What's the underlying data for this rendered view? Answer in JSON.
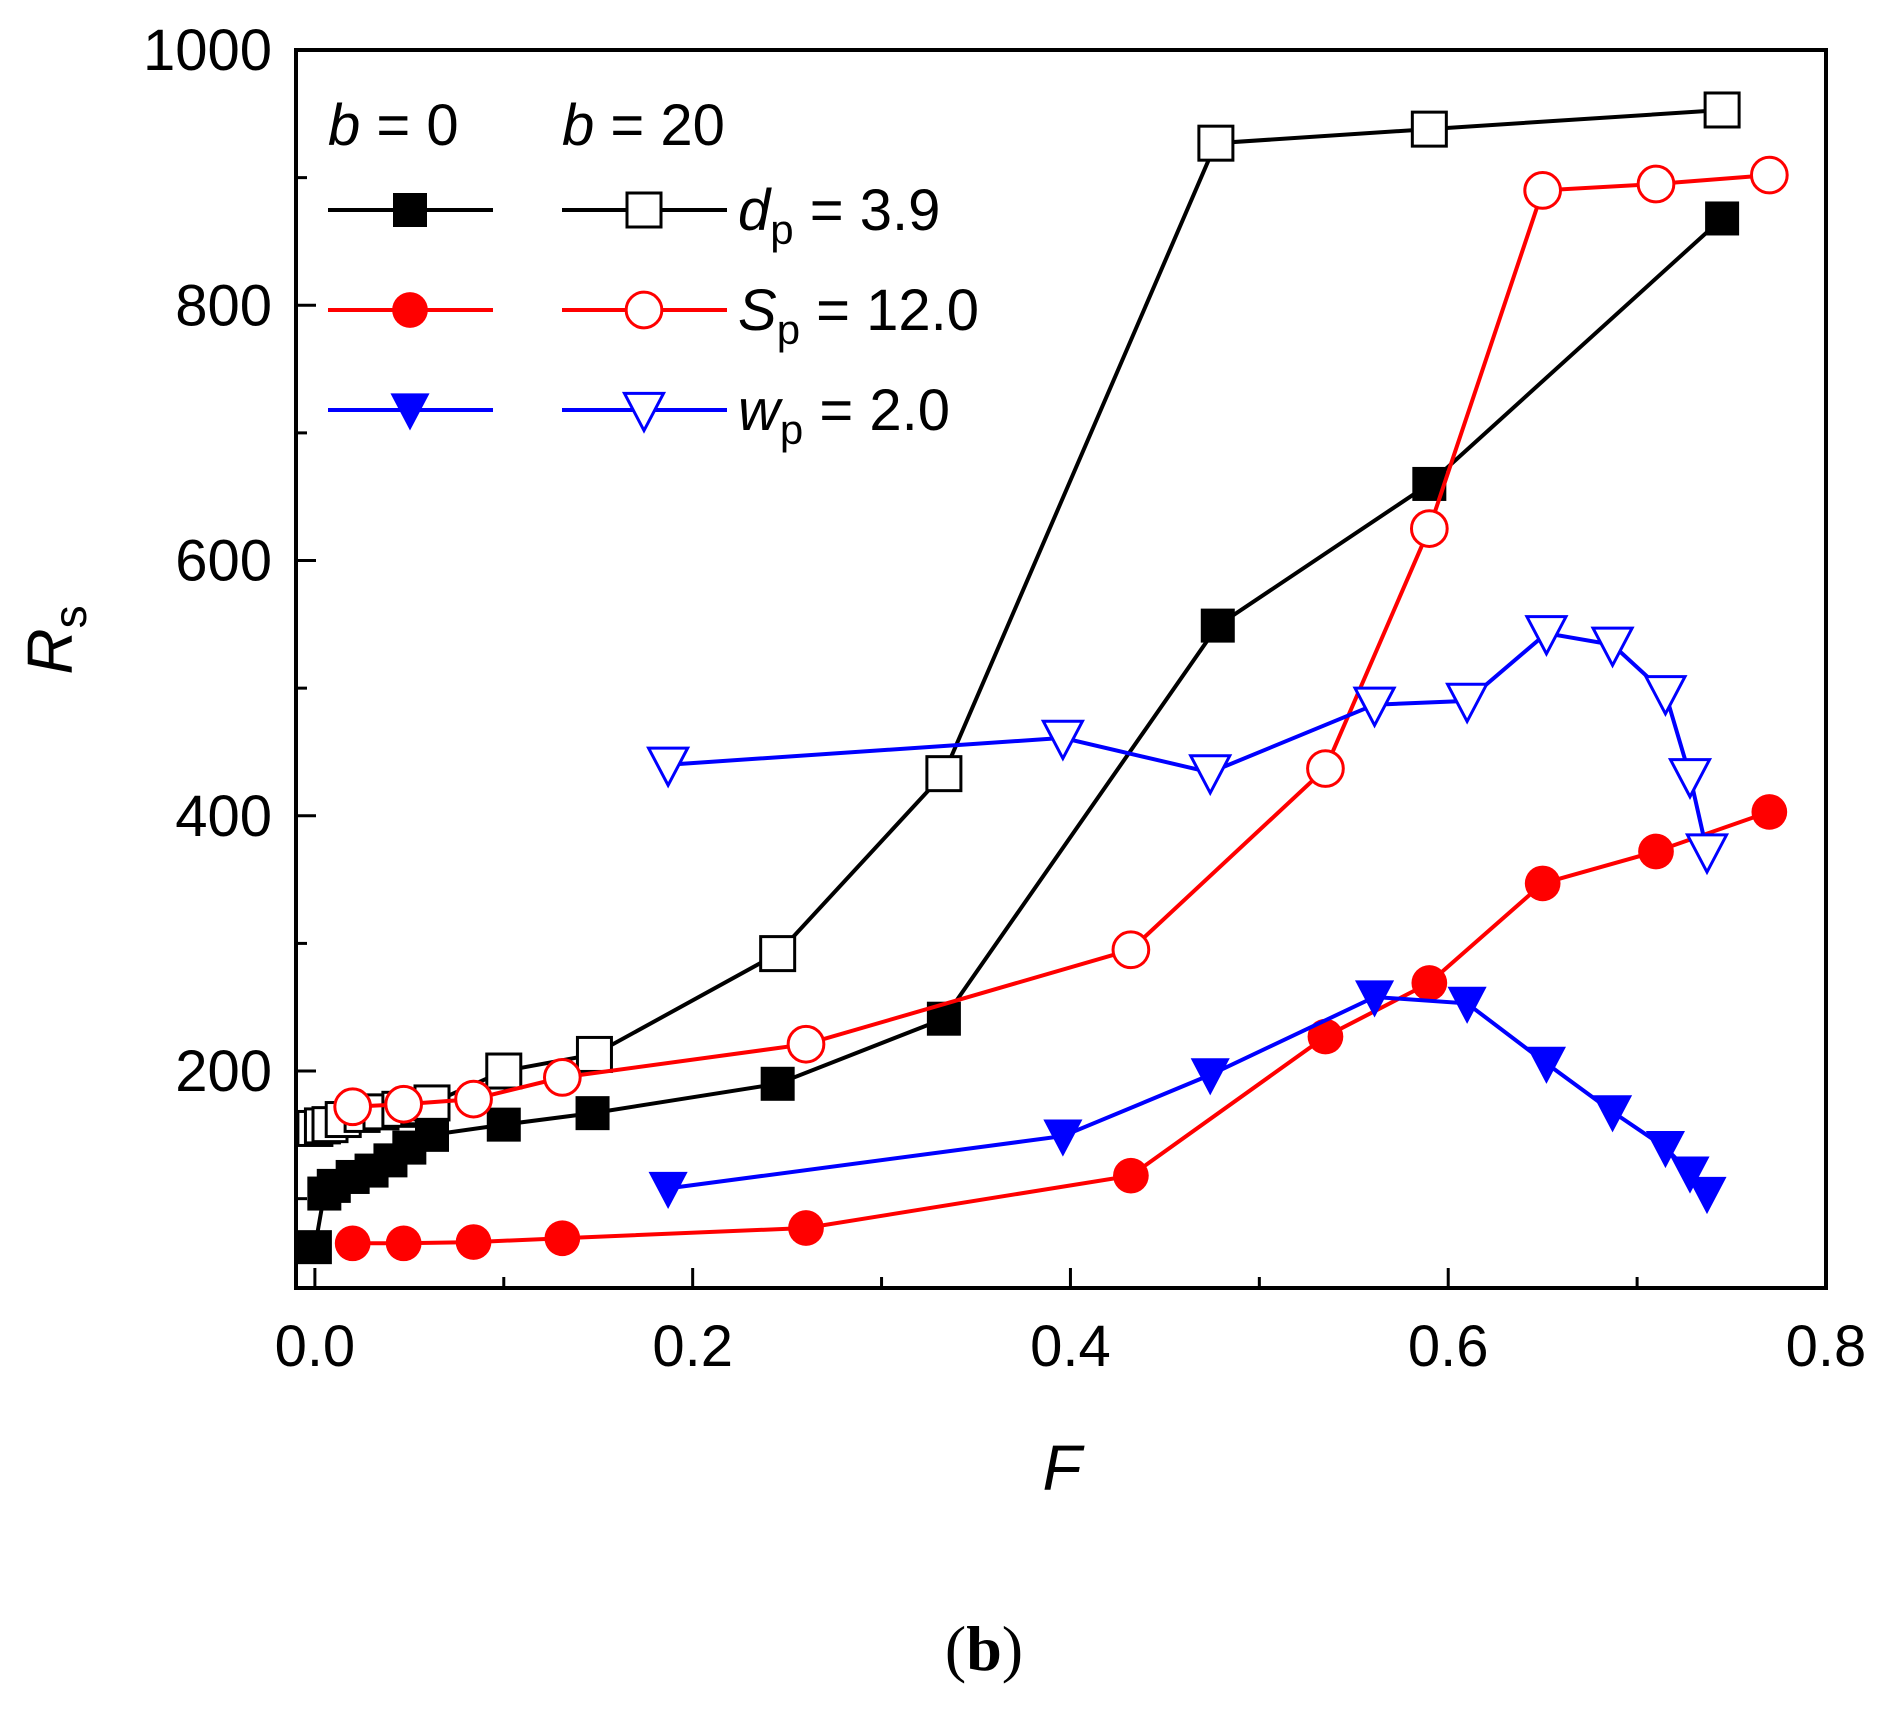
{
  "chart_data": {
    "type": "line",
    "xlabel": "F",
    "ylabel_main": "R",
    "ylabel_sub": "s",
    "xlim": [
      -0.01,
      0.8
    ],
    "ylim": [
      30,
      1000
    ],
    "x_ticks": [
      0.0,
      0.2,
      0.4,
      0.6,
      0.8
    ],
    "x_tick_labels": [
      "0.0",
      "0.2",
      "0.4",
      "0.6",
      "0.8"
    ],
    "x_minor_ticks": [
      0.1,
      0.3,
      0.5,
      0.7
    ],
    "y_ticks": [
      200,
      400,
      600,
      800,
      1000
    ],
    "y_tick_labels": [
      "200",
      "400",
      "600",
      "800",
      "1000"
    ],
    "y_minor_ticks": [
      100,
      300,
      500,
      700,
      900
    ],
    "legend_headers": {
      "b0_sym": "b",
      "b0_val": " = 0",
      "b20_sym": "b",
      "b20_val": " = 20"
    },
    "legend_rows": [
      {
        "sym": "d",
        "sub": "p",
        "val": " = 3.9"
      },
      {
        "sym": "S",
        "sub": "p",
        "val": " = 12.0"
      },
      {
        "sym": "w",
        "sub": "p",
        "val": " = 2.0"
      }
    ],
    "caption": {
      "open": "(",
      "letter": "b",
      "close": ")"
    },
    "series": [
      {
        "name": "d_p = 3.9, b = 20",
        "color": "#000000",
        "marker": "square",
        "filled": false,
        "points": [
          [
            0.0,
            155
          ],
          [
            0.004,
            157
          ],
          [
            0.008,
            158
          ],
          [
            0.015,
            162
          ],
          [
            0.025,
            166
          ],
          [
            0.035,
            168
          ],
          [
            0.045,
            170
          ],
          [
            0.055,
            172
          ],
          [
            0.062,
            175
          ],
          [
            0.1,
            200
          ],
          [
            0.148,
            213
          ],
          [
            0.245,
            292
          ],
          [
            0.333,
            433
          ],
          [
            0.477,
            927
          ],
          [
            0.59,
            938
          ],
          [
            0.745,
            953
          ]
        ]
      },
      {
        "name": "d_p = 3.9, b = 0",
        "color": "#000000",
        "marker": "square",
        "filled": true,
        "points": [
          [
            0.0,
            62
          ],
          [
            0.005,
            104
          ],
          [
            0.01,
            110
          ],
          [
            0.02,
            117
          ],
          [
            0.03,
            122
          ],
          [
            0.04,
            130
          ],
          [
            0.05,
            140
          ],
          [
            0.062,
            150
          ],
          [
            0.1,
            158
          ],
          [
            0.147,
            167
          ],
          [
            0.245,
            190
          ],
          [
            0.333,
            241
          ],
          [
            0.478,
            549
          ],
          [
            0.59,
            660
          ],
          [
            0.745,
            868
          ]
        ]
      },
      {
        "name": "S_p = 12.0, b = 20",
        "color": "#ff0000",
        "marker": "circle",
        "filled": false,
        "points": [
          [
            0.02,
            172
          ],
          [
            0.047,
            174
          ],
          [
            0.084,
            178
          ],
          [
            0.131,
            195
          ],
          [
            0.26,
            221
          ],
          [
            0.432,
            295
          ],
          [
            0.535,
            437
          ],
          [
            0.59,
            625
          ],
          [
            0.65,
            890
          ],
          [
            0.71,
            895
          ],
          [
            0.77,
            902
          ]
        ]
      },
      {
        "name": "S_p = 12.0, b = 0",
        "color": "#ff0000",
        "marker": "circle",
        "filled": true,
        "points": [
          [
            0.02,
            65
          ],
          [
            0.047,
            65
          ],
          [
            0.084,
            66
          ],
          [
            0.131,
            69
          ],
          [
            0.26,
            77
          ],
          [
            0.432,
            118
          ],
          [
            0.535,
            227
          ],
          [
            0.59,
            269
          ],
          [
            0.65,
            347
          ],
          [
            0.71,
            372
          ],
          [
            0.77,
            403
          ]
        ]
      },
      {
        "name": "w_p = 2.0, b = 20",
        "color": "#0000ff",
        "marker": "triangle-down",
        "filled": false,
        "points": [
          [
            0.187,
            440
          ],
          [
            0.396,
            461
          ],
          [
            0.474,
            434
          ],
          [
            0.561,
            487
          ],
          [
            0.61,
            490
          ],
          [
            0.652,
            543
          ],
          [
            0.687,
            534
          ],
          [
            0.715,
            496
          ],
          [
            0.728,
            431
          ],
          [
            0.737,
            372
          ]
        ]
      },
      {
        "name": "w_p = 2.0, b = 0",
        "color": "#0000ff",
        "marker": "triangle-down",
        "filled": true,
        "points": [
          [
            0.187,
            108
          ],
          [
            0.396,
            149
          ],
          [
            0.474,
            197
          ],
          [
            0.561,
            258
          ],
          [
            0.61,
            253
          ],
          [
            0.652,
            206
          ],
          [
            0.687,
            168
          ],
          [
            0.715,
            140
          ],
          [
            0.728,
            120
          ],
          [
            0.737,
            104
          ]
        ]
      }
    ]
  }
}
